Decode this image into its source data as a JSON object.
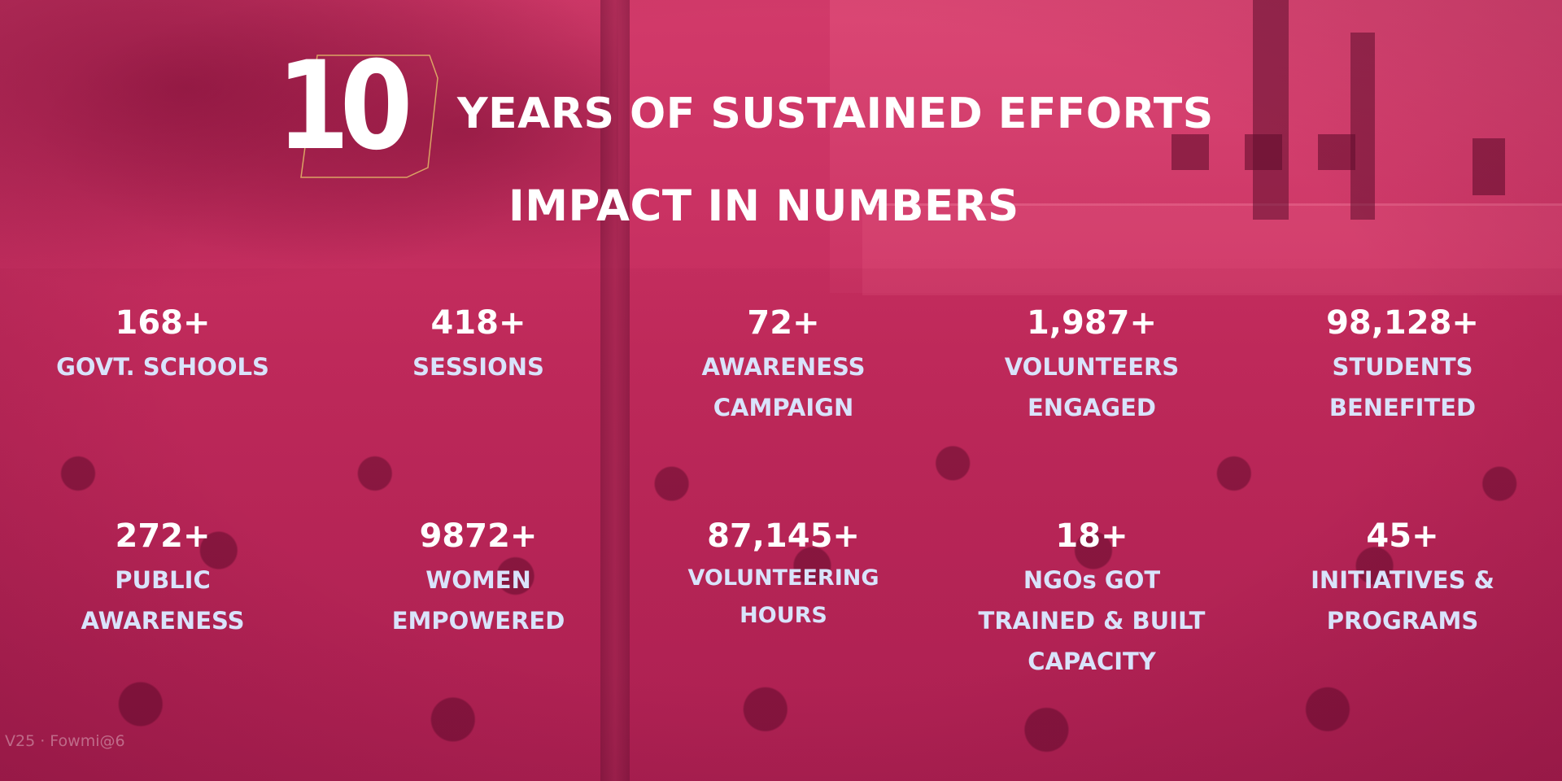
{
  "heading": {
    "number": "10",
    "line1": "YEARS OF SUSTAINED EFFORTS",
    "line2": "IMPACT IN NUMBERS"
  },
  "stats_row1": [
    {
      "value": "168+",
      "label": [
        "GOVT. SCHOOLS"
      ]
    },
    {
      "value": "418+",
      "label": [
        "SESSIONS"
      ]
    },
    {
      "value": "72+",
      "label": [
        "AWARENESS",
        "CAMPAIGN"
      ]
    },
    {
      "value": "1,987+",
      "label": [
        "VOLUNTEERS",
        "ENGAGED"
      ]
    },
    {
      "value": "98,128+",
      "label": [
        "STUDENTS",
        "BENEFITED"
      ]
    }
  ],
  "stats_row2": [
    {
      "value": "272+",
      "label": [
        "PUBLIC",
        "AWARENESS"
      ]
    },
    {
      "value": "9872+",
      "label": [
        "WOMEN",
        "EMPOWERED"
      ]
    },
    {
      "value": "87,145+",
      "label": [
        "VOLUNTEERING",
        "HOURS"
      ]
    },
    {
      "value": "18+",
      "label": [
        "NGOs GOT",
        "TRAINED & BUILT",
        "CAPACITY"
      ]
    },
    {
      "value": "45+",
      "label": [
        "INITIATIVES &",
        "PROGRAMS"
      ]
    }
  ],
  "watermark": "V25 · Fowmi@6",
  "colors": {
    "overlay": "#c42c5e",
    "value_text": "#ffffff",
    "label_text": "#d9e3fb",
    "ten_outline": "#e9c46a"
  }
}
